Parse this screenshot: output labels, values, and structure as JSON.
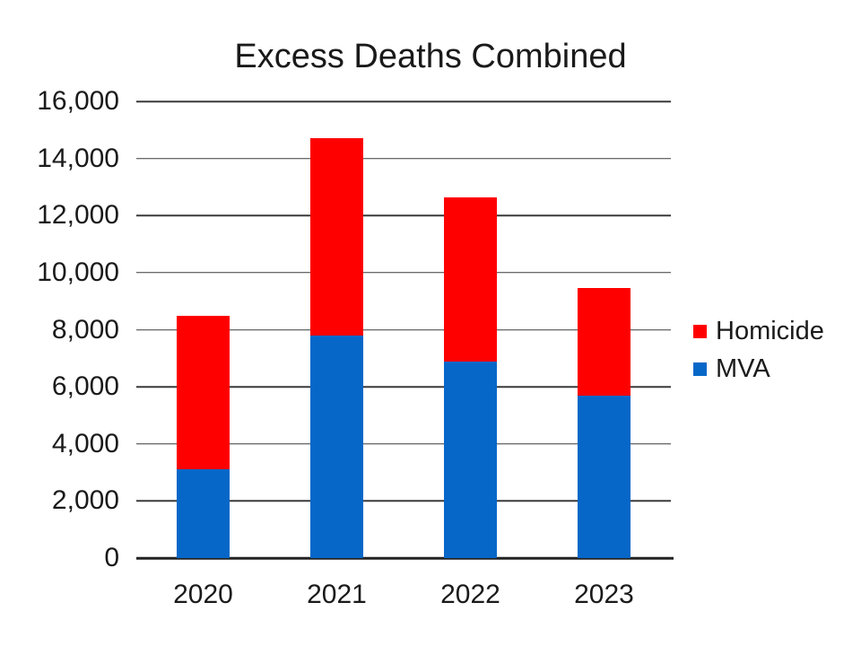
{
  "title": "Excess Deaths Combined",
  "chart_data": {
    "type": "bar",
    "stacked": true,
    "title": "Excess Deaths Combined",
    "xlabel": "",
    "ylabel": "",
    "categories": [
      "2020",
      "2021",
      "2022",
      "2023"
    ],
    "series": [
      {
        "name": "MVA",
        "color": "#0667C8",
        "values": [
          3100,
          7800,
          6900,
          5700
        ]
      },
      {
        "name": "Homicide",
        "color": "#FE0000",
        "values": [
          5400,
          6900,
          5750,
          3750
        ]
      }
    ],
    "totals": [
      8500,
      14700,
      12650,
      9450
    ],
    "ylim": [
      0,
      16000
    ],
    "ytick_step": 2000,
    "ytick_labels": [
      "0",
      "2,000",
      "4,000",
      "6,000",
      "8,000",
      "10,000",
      "12,000",
      "14,000",
      "16,000"
    ],
    "grid": true,
    "legend_position": "right"
  },
  "legend": {
    "items": [
      {
        "label": "Homicide",
        "color": "#FE0000"
      },
      {
        "label": "MVA",
        "color": "#0667C8"
      }
    ]
  }
}
